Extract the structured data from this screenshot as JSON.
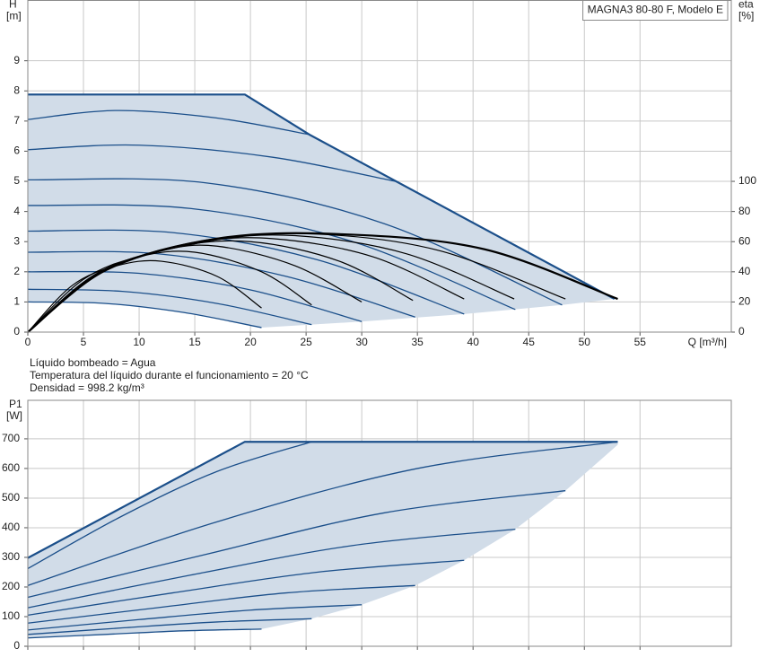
{
  "chart_data": [
    {
      "type": "line",
      "title": "MAGNA3 80-80 F, Modelo E",
      "ylabel": [
        "H",
        "[m]"
      ],
      "y2label": [
        "eta",
        "[%]"
      ],
      "xlabel": "Q [m³/h]",
      "annotations": [
        "Líquido bombeado = Agua",
        "Temperatura del líquido durante el funcionamiento = 20 °C",
        "Densidad = 998.2 kg/m³"
      ],
      "xlim": [
        0,
        63.2
      ],
      "xticks": [
        0,
        5,
        10,
        15,
        20,
        25,
        30,
        35,
        40,
        45,
        50,
        55
      ],
      "ylim": [
        0,
        11
      ],
      "yticks": [
        0,
        1,
        2,
        3,
        4,
        5,
        6,
        7,
        8,
        9
      ],
      "y2lim": [
        0,
        220
      ],
      "y2ticks": [
        0,
        20,
        40,
        60,
        80,
        100
      ],
      "grid": true,
      "area_color": "#d1dce8",
      "series": [
        {
          "color": "#1b4f8a",
          "width": 2.2,
          "smooth": false,
          "area": true,
          "x": [
            0,
            19.5,
            25.3,
            52.7
          ],
          "values": [
            7.88,
            7.88,
            6.55,
            1.1
          ]
        },
        {
          "line": false,
          "smooth": false,
          "area": true,
          "x": [
            21,
            30,
            39.2,
            48,
            52.7
          ],
          "values": [
            0.15,
            0.35,
            0.6,
            0.9,
            1.1
          ]
        },
        {
          "color": "#1b4f8a",
          "width": 1.3,
          "area": true,
          "x": [
            0,
            7,
            14,
            21
          ],
          "values": [
            1.0,
            0.95,
            0.65,
            0.15
          ]
        },
        {
          "color": "#1b4f8a",
          "width": 1.3,
          "x": [
            0,
            8.5,
            17,
            25.5
          ],
          "values": [
            1.42,
            1.35,
            0.95,
            0.25
          ]
        },
        {
          "color": "#1b4f8a",
          "width": 1.3,
          "x": [
            0,
            10,
            20,
            30
          ],
          "values": [
            2.0,
            1.95,
            1.4,
            0.35
          ]
        },
        {
          "color": "#1b4f8a",
          "width": 1.3,
          "x": [
            0,
            11.6,
            23.2,
            34.8
          ],
          "values": [
            2.65,
            2.6,
            1.85,
            0.5
          ]
        },
        {
          "color": "#1b4f8a",
          "width": 1.3,
          "x": [
            0,
            13,
            26,
            39.2
          ],
          "values": [
            3.35,
            3.3,
            2.4,
            0.6
          ]
        },
        {
          "color": "#1b4f8a",
          "width": 1.3,
          "x": [
            0,
            14.6,
            29.2,
            43.8
          ],
          "values": [
            4.2,
            4.1,
            3.0,
            0.75
          ]
        },
        {
          "color": "#1b4f8a",
          "width": 1.3,
          "x": [
            0,
            16,
            32,
            48
          ],
          "values": [
            5.05,
            4.95,
            3.6,
            0.9
          ]
        },
        {
          "color": "#1b4f8a",
          "width": 1.3,
          "x": [
            0,
            10,
            22,
            33
          ],
          "values": [
            6.05,
            6.2,
            5.8,
            5.0
          ]
        },
        {
          "color": "#1b4f8a",
          "width": 1.3,
          "x": [
            0,
            8,
            17,
            25.3
          ],
          "values": [
            7.05,
            7.35,
            7.1,
            6.55
          ]
        },
        {
          "color": "#000000",
          "width": 1.2,
          "axis": "y2",
          "x": [
            0,
            4,
            8,
            12,
            17,
            21
          ],
          "values": [
            0,
            31,
            44,
            47,
            37,
            16
          ]
        },
        {
          "color": "#000000",
          "width": 1.2,
          "axis": "y2",
          "x": [
            0,
            5,
            10,
            15,
            21,
            25.5
          ],
          "values": [
            0,
            35,
            50,
            53,
            40,
            18
          ]
        },
        {
          "color": "#000000",
          "width": 1.2,
          "axis": "y2",
          "x": [
            0,
            6,
            12,
            17,
            24,
            30
          ],
          "values": [
            0,
            38,
            54,
            57,
            44,
            20
          ]
        },
        {
          "color": "#000000",
          "width": 1.2,
          "axis": "y2",
          "x": [
            0,
            6,
            13,
            20,
            28,
            34.6
          ],
          "values": [
            0,
            38,
            56,
            60,
            47,
            21
          ]
        },
        {
          "color": "#000000",
          "width": 1.2,
          "axis": "y2",
          "x": [
            0,
            7,
            15,
            22,
            31,
            39.2
          ],
          "values": [
            0,
            41,
            59,
            62,
            50,
            22
          ]
        },
        {
          "color": "#000000",
          "width": 1.2,
          "axis": "y2",
          "x": [
            0,
            7,
            16,
            24,
            34,
            43.7
          ],
          "values": [
            0,
            41,
            60,
            64,
            52,
            22
          ]
        },
        {
          "color": "#000000",
          "width": 1.2,
          "axis": "y2",
          "x": [
            0,
            7,
            16,
            26,
            37,
            48.3
          ],
          "values": [
            0,
            41,
            61,
            65,
            54,
            22
          ]
        },
        {
          "color": "#000000",
          "width": 2.2,
          "axis": "y2",
          "x": [
            0,
            7,
            17,
            28,
            41,
            53
          ],
          "values": [
            0,
            41,
            62,
            65,
            55,
            22
          ]
        }
      ]
    },
    {
      "type": "line",
      "ylabel": [
        "P1",
        "[W]"
      ],
      "xlim": [
        0,
        63.2
      ],
      "xticks": [
        0,
        5,
        10,
        15,
        20,
        25,
        30,
        35,
        40,
        45,
        50,
        55
      ],
      "xtick_labels": false,
      "ylim": [
        0,
        830
      ],
      "yticks": [
        0,
        100,
        200,
        300,
        400,
        500,
        600,
        700
      ],
      "grid": true,
      "area_color": "#d1dce8",
      "series": [
        {
          "color": "#1b4f8a",
          "width": 2.2,
          "smooth": false,
          "area": true,
          "x": [
            0,
            19.5,
            53
          ],
          "values": [
            298,
            690,
            690
          ]
        },
        {
          "line": false,
          "area": true,
          "x": [
            21,
            25.5,
            30,
            34.8,
            39.2,
            43.8,
            48.3,
            53
          ],
          "values": [
            58,
            93,
            140,
            205,
            290,
            395,
            525,
            680
          ]
        },
        {
          "color": "#1b4f8a",
          "width": 1.3,
          "area": true,
          "x": [
            0,
            7,
            14,
            21
          ],
          "values": [
            28,
            40,
            52,
            58
          ]
        },
        {
          "color": "#1b4f8a",
          "width": 1.3,
          "x": [
            0,
            8.5,
            17,
            25.5
          ],
          "values": [
            40,
            62,
            82,
            93
          ]
        },
        {
          "color": "#1b4f8a",
          "width": 1.3,
          "x": [
            0,
            10,
            20,
            30
          ],
          "values": [
            55,
            90,
            122,
            140
          ]
        },
        {
          "color": "#1b4f8a",
          "width": 1.3,
          "x": [
            0,
            11.6,
            23.2,
            34.8
          ],
          "values": [
            78,
            130,
            180,
            205
          ]
        },
        {
          "color": "#1b4f8a",
          "width": 1.3,
          "x": [
            0,
            13,
            26,
            39.2
          ],
          "values": [
            105,
            180,
            250,
            290
          ]
        },
        {
          "color": "#1b4f8a",
          "width": 1.3,
          "x": [
            0,
            14.6,
            29.2,
            43.8
          ],
          "values": [
            130,
            240,
            340,
            395
          ]
        },
        {
          "color": "#1b4f8a",
          "width": 1.3,
          "x": [
            0,
            16,
            32,
            48.3
          ],
          "values": [
            165,
            310,
            450,
            525
          ]
        },
        {
          "color": "#1b4f8a",
          "width": 1.3,
          "x": [
            0,
            17,
            35,
            53
          ],
          "values": [
            205,
            420,
            600,
            690
          ]
        },
        {
          "color": "#1b4f8a",
          "width": 1.3,
          "x": [
            0,
            8.5,
            17,
            25.5
          ],
          "values": [
            262,
            440,
            590,
            690
          ]
        }
      ]
    }
  ]
}
